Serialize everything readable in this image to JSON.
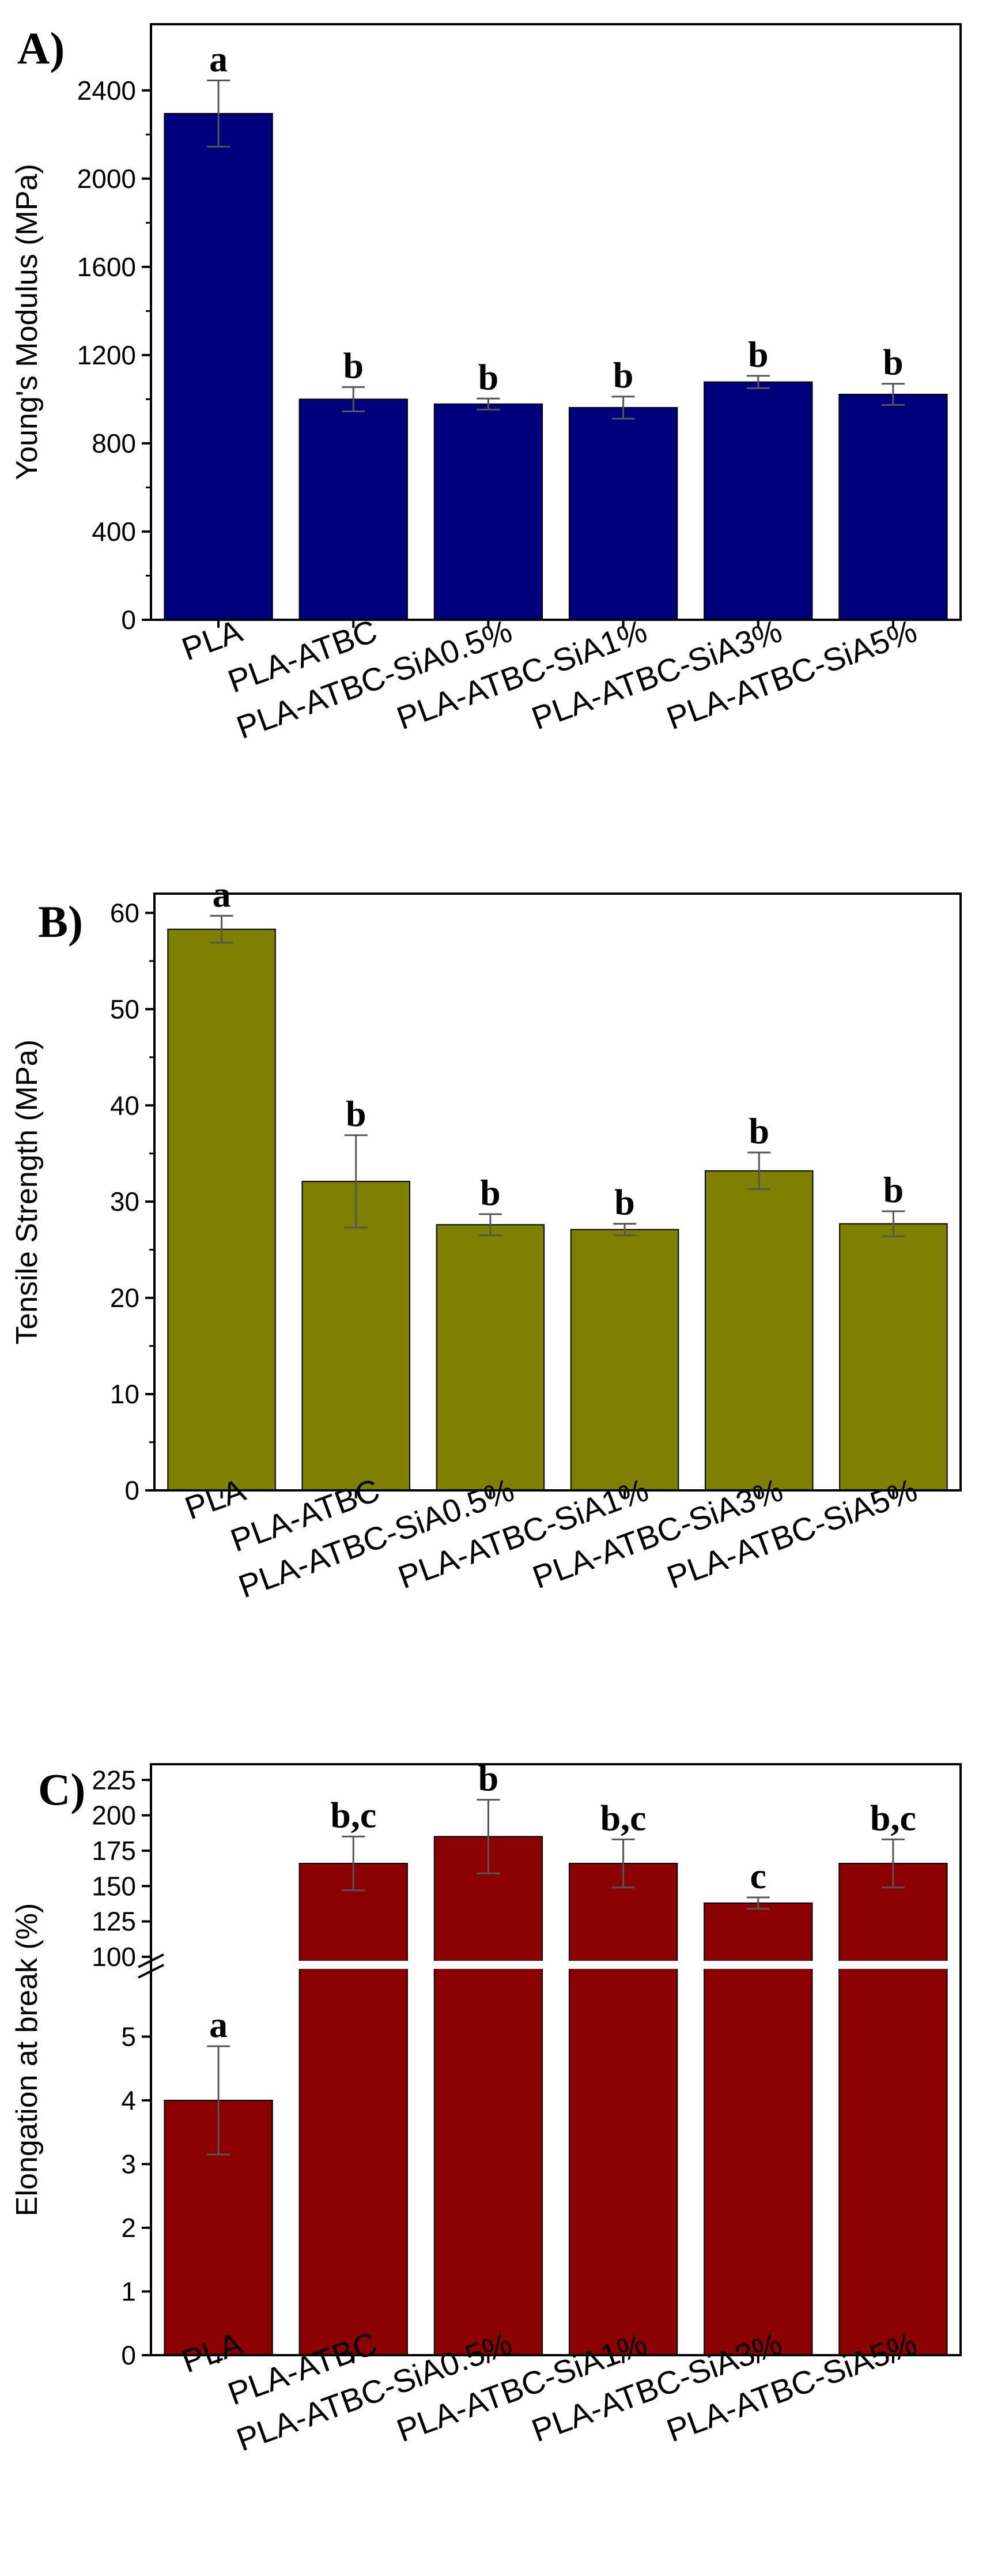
{
  "chart_data": [
    {
      "type": "bar",
      "panel_label": "A)",
      "ylabel": "Young's Modulus (MPa)",
      "categories": [
        "PLA",
        "PLA-ATBC",
        "PLA-ATBC-SiA0.5%",
        "PLA-ATBC-SiA1%",
        "PLA-ATBC-SiA3%",
        "PLA-ATBC-SiA5%"
      ],
      "values": [
        2295,
        1000,
        978,
        962,
        1078,
        1022
      ],
      "errors": [
        150,
        55,
        25,
        50,
        28,
        48
      ],
      "significance": [
        "a",
        "b",
        "b",
        "b",
        "b",
        "b"
      ],
      "ylim": [
        0,
        2700
      ],
      "yticks": [
        0,
        400,
        800,
        1200,
        1600,
        2000,
        2400
      ],
      "ytick_labels": [
        "0",
        "400",
        "800",
        "1200",
        "1600",
        "2000",
        "2400"
      ],
      "bar_color": "#00007f",
      "grid": false
    },
    {
      "type": "bar",
      "panel_label": "B)",
      "ylabel": "Tensile Strength (MPa)",
      "categories": [
        "PLA",
        "PLA-ATBC",
        "PLA-ATBC-SiA0.5%",
        "PLA-ATBC-SiA1%",
        "PLA-ATBC-SiA3%",
        "PLA-ATBC-SiA5%"
      ],
      "values": [
        58.3,
        32.1,
        27.6,
        27.1,
        33.2,
        27.7
      ],
      "errors": [
        1.4,
        4.8,
        1.1,
        0.6,
        1.9,
        1.3
      ],
      "significance": [
        "a",
        "b",
        "b",
        "b",
        "b",
        "b"
      ],
      "ylim": [
        0,
        62
      ],
      "yticks": [
        0,
        10,
        20,
        30,
        40,
        50,
        60
      ],
      "ytick_labels": [
        "0",
        "10",
        "20",
        "30",
        "40",
        "50",
        "60"
      ],
      "bar_color": "#808000",
      "grid": false
    },
    {
      "type": "bar",
      "panel_label": "C)",
      "ylabel": "Elongation at break (%)",
      "categories": [
        "PLA",
        "PLA-ATBC",
        "PLA-ATBC-SiA0.5%",
        "PLA-ATBC-SiA1%",
        "PLA-ATBC-SiA3%",
        "PLA-ATBC-SiA5%"
      ],
      "values": [
        4.0,
        166,
        185,
        166,
        138,
        166
      ],
      "errors": [
        0.85,
        19,
        26,
        17,
        4,
        17
      ],
      "significance": [
        "a",
        "b,c",
        "b",
        "b,c",
        "c",
        "b,c"
      ],
      "axis_break": [
        6,
        100
      ],
      "ylim": [
        0,
        230
      ],
      "yticks": [
        0,
        1,
        2,
        3,
        4,
        5,
        100,
        125,
        150,
        175,
        200,
        225
      ],
      "ytick_labels": [
        "0",
        "1",
        "2",
        "3",
        "4",
        "5",
        "100",
        "125",
        "150",
        "175",
        "200",
        "225"
      ],
      "bar_color": "#8b0000",
      "grid": false
    }
  ]
}
